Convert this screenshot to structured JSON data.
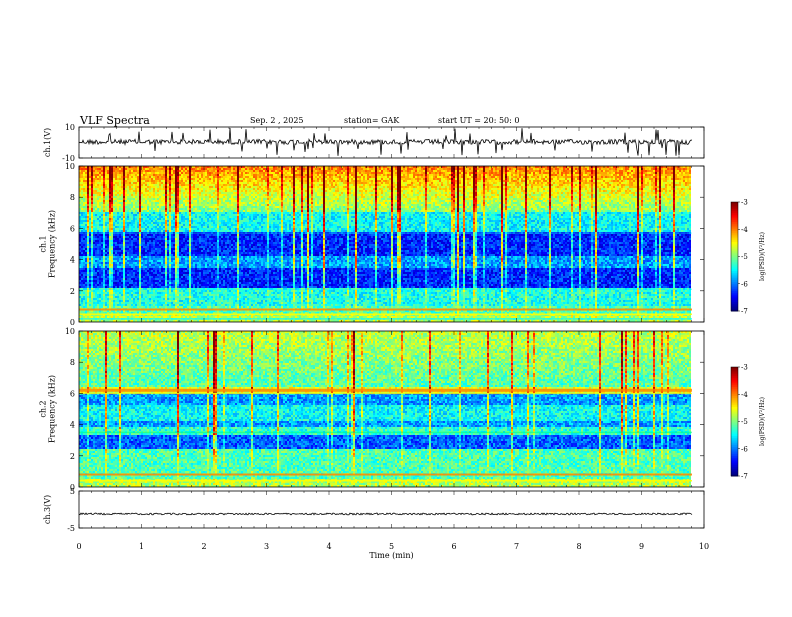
{
  "header": {
    "title": "VLF  Spectra",
    "date": "Sep. 2   , 2025",
    "station": "station= GAK",
    "start_ut": "start  UT  =    20: 50: 0"
  },
  "chart_data": [
    {
      "type": "line",
      "panel": "ch1-waveform",
      "ylabel": "ch.1(V)",
      "ylim": [
        -10,
        10
      ],
      "yticks": [
        "10",
        "-10"
      ],
      "xlim": [
        0,
        10
      ],
      "series": [
        {
          "values_description_level": 0
        }
      ]
    },
    {
      "type": "heatmap",
      "panel": "ch1-spectrogram",
      "ylabel": "ch.1\nFrequency  (kHz)",
      "ylabel_lines": [
        "ch.1",
        "Frequency  (kHz)"
      ],
      "ylim": [
        0,
        10
      ],
      "yticks": [
        "0",
        "2",
        "4",
        "6",
        "8",
        "10"
      ],
      "xlim": [
        0,
        9.8
      ],
      "colorbar": {
        "ticks": [
          "-3",
          "-4",
          "-5",
          "-6",
          "-7"
        ],
        "range": [
          -7,
          -3
        ],
        "label": "log(PSD)(V²/Hz)"
      }
    },
    {
      "type": "heatmap",
      "panel": "ch2-spectrogram",
      "ylabel_lines": [
        "ch.2",
        "Frequency  (kHz)"
      ],
      "ylim": [
        0,
        10
      ],
      "yticks": [
        "0",
        "2",
        "4",
        "6",
        "8",
        "10"
      ],
      "xlim": [
        0,
        9.8
      ],
      "colorbar": {
        "ticks": [
          "-3",
          "-4",
          "-5",
          "-6",
          "-7"
        ],
        "range": [
          -7,
          -3
        ],
        "label": "log(PSD)(V²/Hz)"
      }
    },
    {
      "type": "line",
      "panel": "ch3-waveform",
      "ylabel": "ch.3(V)",
      "ylim": [
        -5,
        5
      ],
      "yticks": [
        "5",
        "-5"
      ],
      "xlim": [
        0,
        10
      ],
      "xlabel": "Time  (min)",
      "xticks": [
        "0",
        "1",
        "2",
        "3",
        "4",
        "5",
        "6",
        "7",
        "8",
        "9",
        "10"
      ]
    }
  ]
}
